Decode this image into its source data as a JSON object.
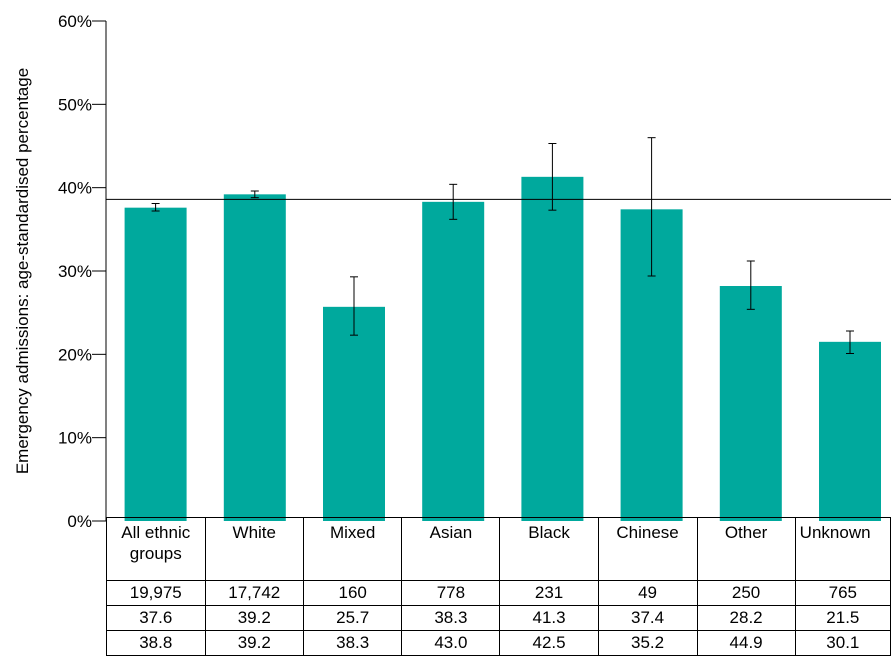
{
  "chart_data": {
    "type": "bar",
    "ylabel": "Emergency admissions: age-standardised percentage",
    "ylim": [
      0,
      60
    ],
    "yticks": [
      "0%",
      "10%",
      "20%",
      "30%",
      "40%",
      "50%",
      "60%"
    ],
    "ytick_values": [
      0,
      10,
      20,
      30,
      40,
      50,
      60
    ],
    "categories": [
      "All ethnic groups",
      "White",
      "Mixed",
      "Asian",
      "Black",
      "Chinese",
      "Other",
      "Unknown"
    ],
    "values": [
      37.6,
      39.2,
      25.7,
      38.3,
      41.3,
      37.4,
      28.2,
      21.5
    ],
    "error_low": [
      37.2,
      38.8,
      22.3,
      36.2,
      37.3,
      29.4,
      25.4,
      20.1
    ],
    "error_high": [
      38.1,
      39.6,
      29.3,
      40.4,
      45.3,
      46.0,
      31.2,
      22.8
    ],
    "reference_line": 38.6,
    "bar_color": "#00A99D",
    "grid": false,
    "table_rows": [
      [
        "19,975",
        "17,742",
        "160",
        "778",
        "231",
        "49",
        "250",
        "765"
      ],
      [
        "37.6",
        "39.2",
        "25.7",
        "38.3",
        "41.3",
        "37.4",
        "28.2",
        "21.5"
      ],
      [
        "38.8",
        "39.2",
        "38.3",
        "43.0",
        "42.5",
        "35.2",
        "44.9",
        "30.1"
      ]
    ]
  }
}
